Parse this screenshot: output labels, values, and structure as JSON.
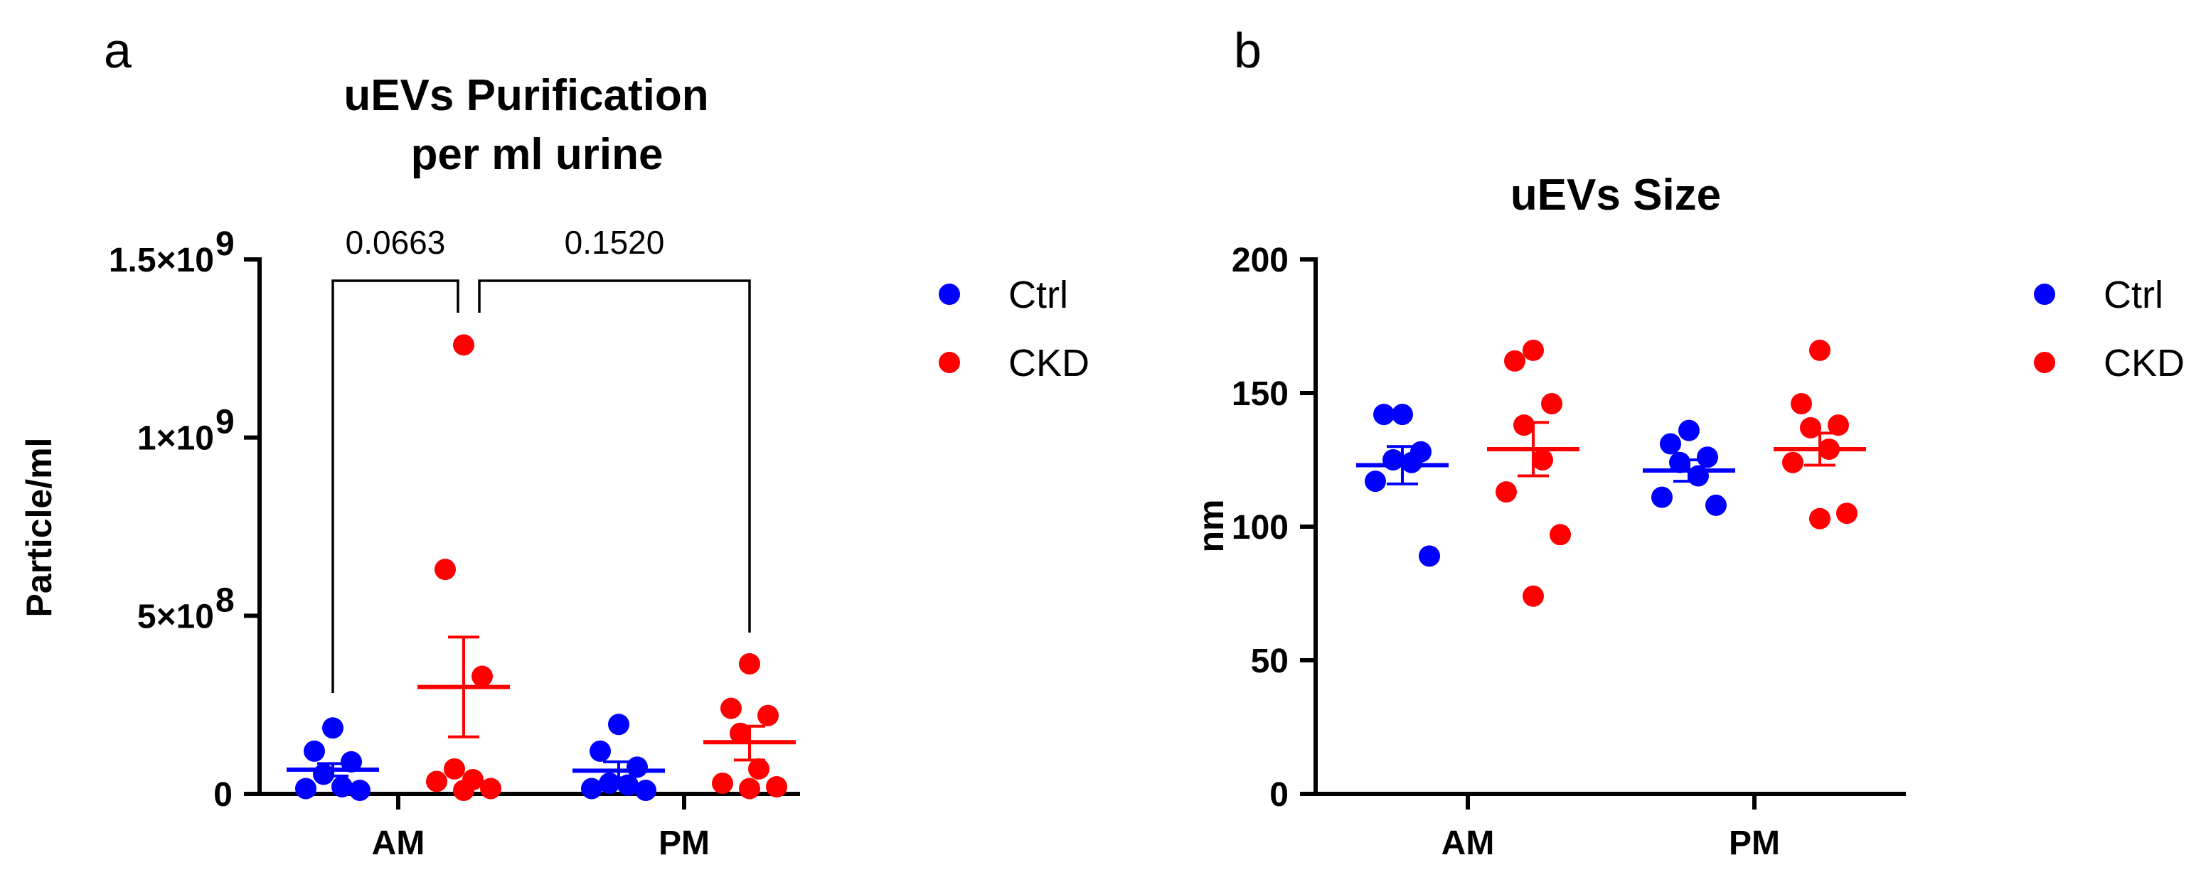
{
  "colors": {
    "ctrl": "#0000ff",
    "ckd": "#ff0000",
    "axis": "#000000"
  },
  "chart_data": [
    {
      "type": "scatter",
      "panel_label": "a",
      "title": [
        "uEVs Purification",
        "per ml urine"
      ],
      "xlabel": "",
      "ylabel": "Particle/ml",
      "categories": [
        "AM",
        "PM"
      ],
      "ylim": [
        0,
        1500000000
      ],
      "yticks": [
        {
          "value": 0,
          "label": "0",
          "exp": ""
        },
        {
          "value": 500000000,
          "label": "5×10",
          "exp": "8"
        },
        {
          "value": 1000000000,
          "label": "1×10",
          "exp": "9"
        },
        {
          "value": 1500000000,
          "label": "1.5×10",
          "exp": "9"
        }
      ],
      "legend": [
        {
          "name": "Ctrl",
          "color": "#0000ff"
        },
        {
          "name": "CKD",
          "color": "#ff0000"
        }
      ],
      "series": [
        {
          "name": "Ctrl",
          "category": "AM",
          "color": "#0000ff",
          "values": [
            185000000,
            120000000,
            90000000,
            55000000,
            20000000,
            15000000,
            10000000
          ],
          "mean": 68000000,
          "sem_low": 50000000,
          "sem_high": 85000000
        },
        {
          "name": "CKD",
          "category": "AM",
          "color": "#ff0000",
          "values": [
            1260000000,
            630000000,
            330000000,
            70000000,
            40000000,
            35000000,
            15000000,
            10000000
          ],
          "mean": 300000000,
          "sem_low": 160000000,
          "sem_high": 440000000
        },
        {
          "name": "Ctrl",
          "category": "PM",
          "color": "#0000ff",
          "values": [
            195000000,
            120000000,
            75000000,
            30000000,
            25000000,
            15000000,
            10000000
          ],
          "mean": 65000000,
          "sem_low": 45000000,
          "sem_high": 90000000
        },
        {
          "name": "CKD",
          "category": "PM",
          "color": "#ff0000",
          "values": [
            365000000,
            240000000,
            220000000,
            170000000,
            70000000,
            30000000,
            20000000,
            15000000
          ],
          "mean": 145000000,
          "sem_low": 95000000,
          "sem_high": 190000000
        }
      ],
      "comparisons": [
        {
          "label": "0.0663",
          "from": "AM Ctrl",
          "to": "AM CKD"
        },
        {
          "label": "0.1520",
          "from": "AM CKD",
          "to": "PM CKD"
        }
      ]
    },
    {
      "type": "scatter",
      "panel_label": "b",
      "title": [
        "uEVs Size"
      ],
      "xlabel": "",
      "ylabel": "nm",
      "categories": [
        "AM",
        "PM"
      ],
      "ylim": [
        0,
        200
      ],
      "yticks": [
        {
          "value": 0,
          "label": "0",
          "exp": ""
        },
        {
          "value": 50,
          "label": "50",
          "exp": ""
        },
        {
          "value": 100,
          "label": "100",
          "exp": ""
        },
        {
          "value": 150,
          "label": "150",
          "exp": ""
        },
        {
          "value": 200,
          "label": "200",
          "exp": ""
        }
      ],
      "legend": [
        {
          "name": "Ctrl",
          "color": "#0000ff"
        },
        {
          "name": "CKD",
          "color": "#ff0000"
        }
      ],
      "series": [
        {
          "name": "Ctrl",
          "category": "AM",
          "color": "#0000ff",
          "values": [
            142,
            142,
            128,
            125,
            124,
            117,
            89
          ],
          "mean": 123,
          "sem_low": 116,
          "sem_high": 130
        },
        {
          "name": "CKD",
          "category": "AM",
          "color": "#ff0000",
          "values": [
            166,
            162,
            146,
            138,
            125,
            113,
            97,
            74
          ],
          "mean": 129,
          "sem_low": 119,
          "sem_high": 139
        },
        {
          "name": "Ctrl",
          "category": "PM",
          "color": "#0000ff",
          "values": [
            136,
            131,
            126,
            124,
            119,
            111,
            108
          ],
          "mean": 121,
          "sem_low": 117,
          "sem_high": 125
        },
        {
          "name": "CKD",
          "category": "PM",
          "color": "#ff0000",
          "values": [
            166,
            146,
            138,
            137,
            129,
            124,
            105,
            103
          ],
          "mean": 129,
          "sem_low": 123,
          "sem_high": 135
        }
      ],
      "comparisons": []
    }
  ]
}
